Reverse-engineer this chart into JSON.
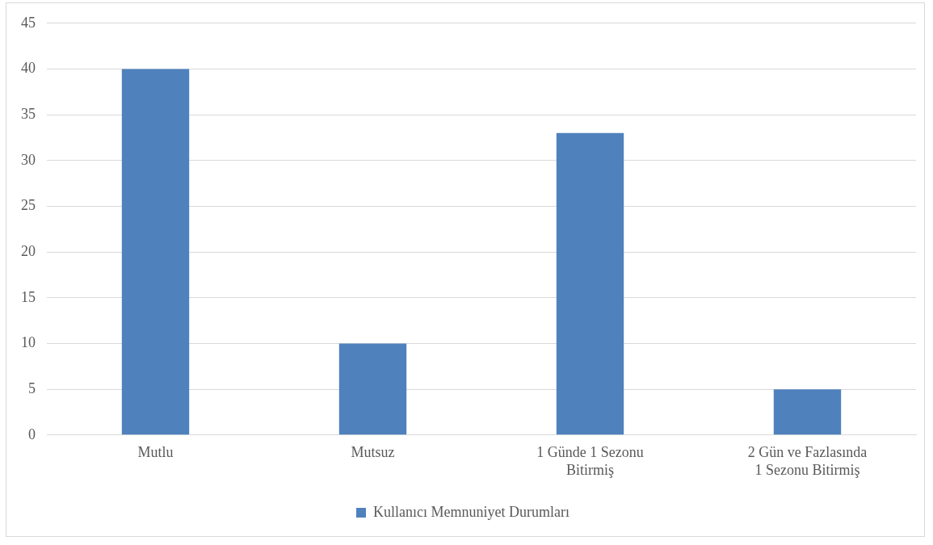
{
  "chart_data": {
    "type": "bar",
    "categories": [
      "Mutlu",
      "Mutsuz",
      "1 Günde 1 Sezonu Bitirmiş",
      "2 Gün ve Fazlasında 1 Sezonu Bitirmiş"
    ],
    "series": [
      {
        "name": "Kullanıcı Memnuniyet Durumları",
        "color": "#4f81bd",
        "values": [
          40,
          10,
          33,
          5
        ]
      }
    ],
    "ylim": [
      0,
      45
    ],
    "yticks": [
      0,
      5,
      10,
      15,
      20,
      25,
      30,
      35,
      40,
      45
    ],
    "grid": "y",
    "legend": "bottom"
  }
}
